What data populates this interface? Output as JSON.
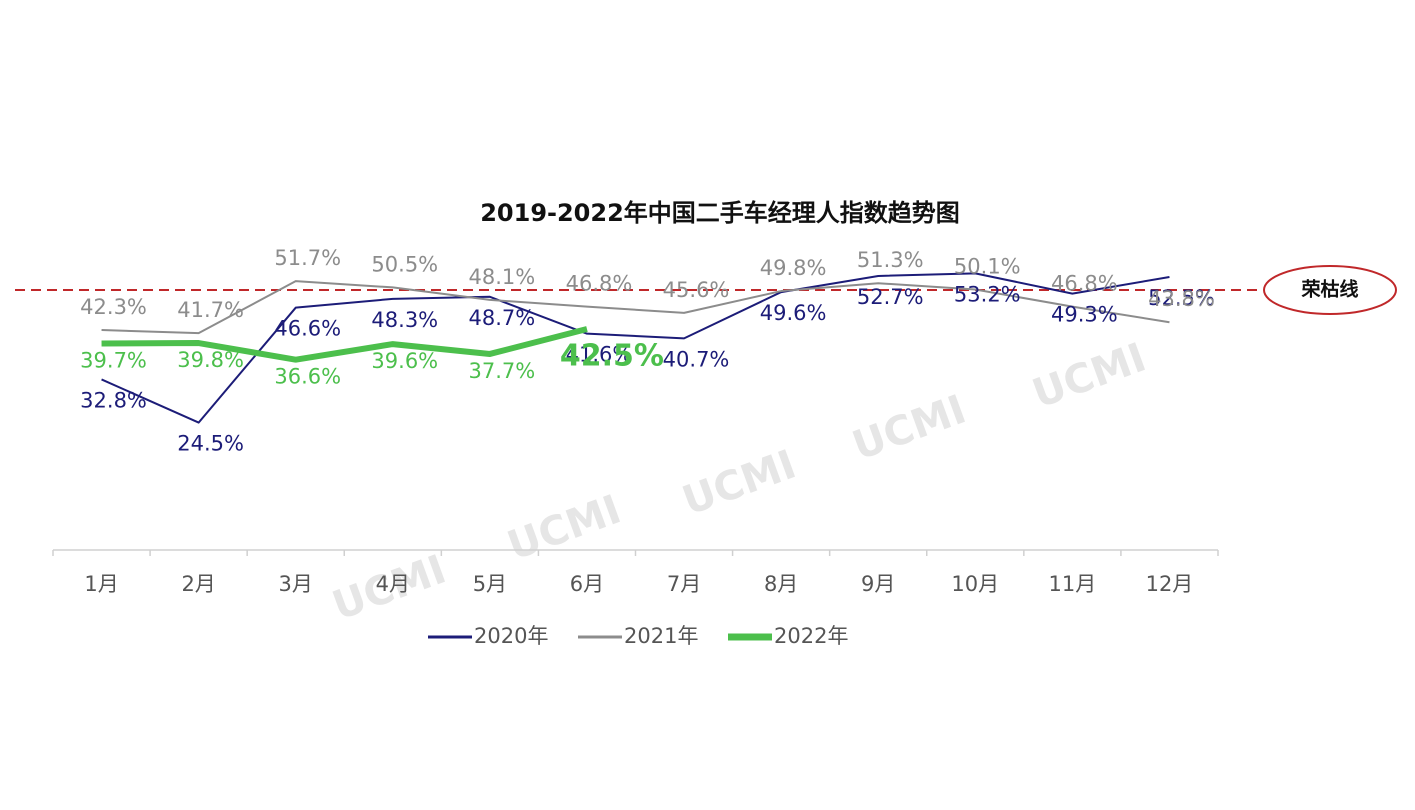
{
  "chart_data": {
    "type": "line",
    "title": "2019-2022年中国二手车经理人指数趋势图",
    "categories": [
      "1月",
      "2月",
      "3月",
      "4月",
      "5月",
      "6月",
      "7月",
      "8月",
      "9月",
      "10月",
      "11月",
      "12月"
    ],
    "series": [
      {
        "name": "2020年",
        "color": "#1c1c78",
        "values": [
          32.8,
          24.5,
          46.6,
          48.3,
          48.7,
          41.6,
          40.7,
          49.6,
          52.7,
          53.2,
          49.3,
          52.5
        ],
        "value_labels": [
          "32.8%",
          "24.5%",
          "46.6%",
          "48.3%",
          "48.7%",
          "41.6%",
          "40.7%",
          "49.6%",
          "52.7%",
          "53.2%",
          "49.3%",
          "52.5%"
        ]
      },
      {
        "name": "2021年",
        "color": "#8c8c8c",
        "values": [
          42.3,
          41.7,
          51.7,
          50.5,
          48.1,
          46.8,
          45.6,
          49.8,
          51.3,
          50.1,
          46.8,
          43.8
        ],
        "value_labels": [
          "42.3%",
          "41.7%",
          "51.7%",
          "50.5%",
          "48.1%",
          "46.8%",
          "45.6%",
          "49.8%",
          "51.3%",
          "50.1%",
          "46.8%",
          "43.8%"
        ]
      },
      {
        "name": "2022年",
        "color": "#4cbf4c",
        "values": [
          39.7,
          39.8,
          36.6,
          39.6,
          37.7,
          42.5,
          null,
          null,
          null,
          null,
          null,
          null
        ],
        "value_labels": [
          "39.7%",
          "39.8%",
          "36.6%",
          "39.6%",
          "37.7%",
          "42.5%",
          null,
          null,
          null,
          null,
          null,
          null
        ]
      }
    ],
    "ylim": [
      0,
      60
    ],
    "reference_line": {
      "value": 50,
      "label": "荣枯线",
      "color": "#c0282a"
    },
    "watermark": "UCMI",
    "legend": "bottom"
  }
}
